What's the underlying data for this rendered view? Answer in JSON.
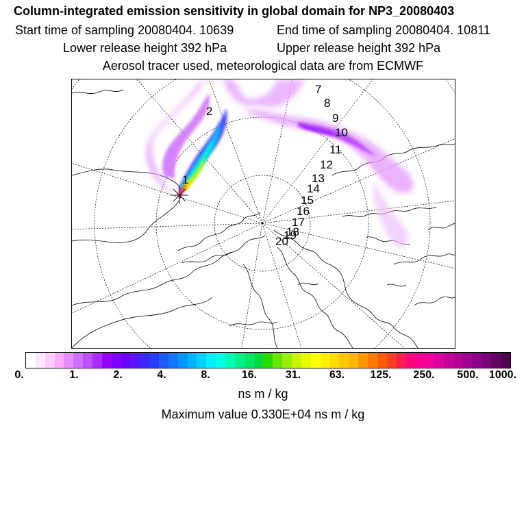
{
  "header": {
    "title": "Column-integrated emission sensitivity in global domain for NP3_20080403",
    "start_time": "Start time of sampling 20080404. 10639",
    "end_time": "End time of sampling 20080404. 10811",
    "lower_height": "Lower release height  392 hPa",
    "upper_height": "Upper release height  392 hPa",
    "tracer_info": "Aerosol tracer used, meteorological data are from ECMWF"
  },
  "map": {
    "projection": "north-polar-stereographic",
    "day_labels": [
      "1",
      "2",
      "7",
      "8",
      "9",
      "10",
      "11",
      "12",
      "13",
      "14",
      "15",
      "16",
      "17",
      "18",
      "19",
      "20"
    ],
    "release_marker": "release-point-star"
  },
  "legend": {
    "tick_labels": [
      "0.",
      "1.",
      "2.",
      "4.",
      "8.",
      "16.",
      "31.",
      "63.",
      "125.",
      "250.",
      "500.",
      "1000."
    ],
    "colors": [
      "#ffffff",
      "#ffe8ff",
      "#ffccff",
      "#ffaaff",
      "#e68cff",
      "#d26eff",
      "#c04eff",
      "#aa2aff",
      "#9400ff",
      "#7d00ff",
      "#6a00ff",
      "#5a14ff",
      "#3c28ff",
      "#2a3cff",
      "#1e5aff",
      "#1478ff",
      "#0096ff",
      "#00b4ff",
      "#00d2ff",
      "#00f0ff",
      "#00ffe6",
      "#00ffb4",
      "#00f08c",
      "#00e664",
      "#00dc3c",
      "#28dc00",
      "#64e600",
      "#96ee00",
      "#c8f500",
      "#e6fa00",
      "#ffff00",
      "#fff000",
      "#ffdc00",
      "#ffc800",
      "#ffb400",
      "#ff9600",
      "#ff7800",
      "#ff5a00",
      "#ff3c28",
      "#ff1e50",
      "#ff0a78",
      "#ff0096",
      "#f000a0",
      "#dc00a0",
      "#c8009b",
      "#b40096",
      "#a00091",
      "#8c008c",
      "#780078",
      "#640064",
      "#500050"
    ],
    "unit": "ns m / kg",
    "max_value_text": "Maximum value  0.330E+04 ns m / kg"
  }
}
